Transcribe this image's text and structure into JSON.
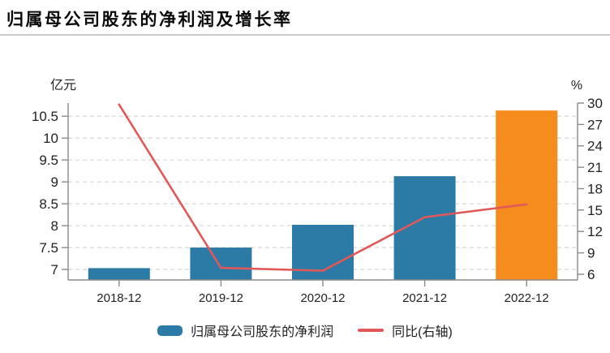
{
  "header": {
    "title": "归属母公司股东的净利润及增长率"
  },
  "chart_data": {
    "type": "bar",
    "subtype": "combo-bar-line-dual-axis",
    "title": "归属母公司股东的净利润及增长率",
    "categories": [
      "2018-12",
      "2019-12",
      "2020-12",
      "2021-12",
      "2022-12"
    ],
    "series": [
      {
        "name": "归属母公司股东的净利润",
        "type": "bar",
        "axis": "left",
        "unit": "亿元",
        "values": [
          7.03,
          7.5,
          8.02,
          9.13,
          10.63
        ],
        "colors": [
          "#2b7ba6",
          "#2b7ba6",
          "#2b7ba6",
          "#2b7ba6",
          "#f78c1e"
        ]
      },
      {
        "name": "同比(右轴)",
        "type": "line",
        "axis": "right",
        "unit": "%",
        "values": [
          29.8,
          6.9,
          6.5,
          14.0,
          15.8
        ],
        "color": "#e05858"
      }
    ],
    "left_axis": {
      "label": "亿元",
      "ticks": [
        7,
        7.5,
        8,
        8.5,
        9,
        9.5,
        10,
        10.5
      ],
      "range": [
        6.76,
        10.8
      ]
    },
    "right_axis": {
      "label": "%",
      "ticks": [
        6,
        9,
        12,
        15,
        18,
        21,
        24,
        27,
        30
      ],
      "range": [
        5.2,
        30.0
      ]
    },
    "grid": "dashed horizontal, left-axis ticks",
    "legend_position": "bottom"
  },
  "legend": {
    "items": [
      {
        "label": "归属母公司股东的净利润",
        "swatch": "bar",
        "color": "#2b7ba6"
      },
      {
        "label": "同比(右轴)",
        "swatch": "line",
        "color": "#e05858"
      }
    ]
  },
  "colors": {
    "bar_blue": "#2b7ba6",
    "bar_highlight_orange": "#f78c1e",
    "line_red": "#e05858",
    "gridline": "#d9d9d9",
    "axis": "#8a8a8a",
    "tick_text": "#222222",
    "title_text": "#0a0a0a",
    "divider": "#c9c9c9"
  }
}
